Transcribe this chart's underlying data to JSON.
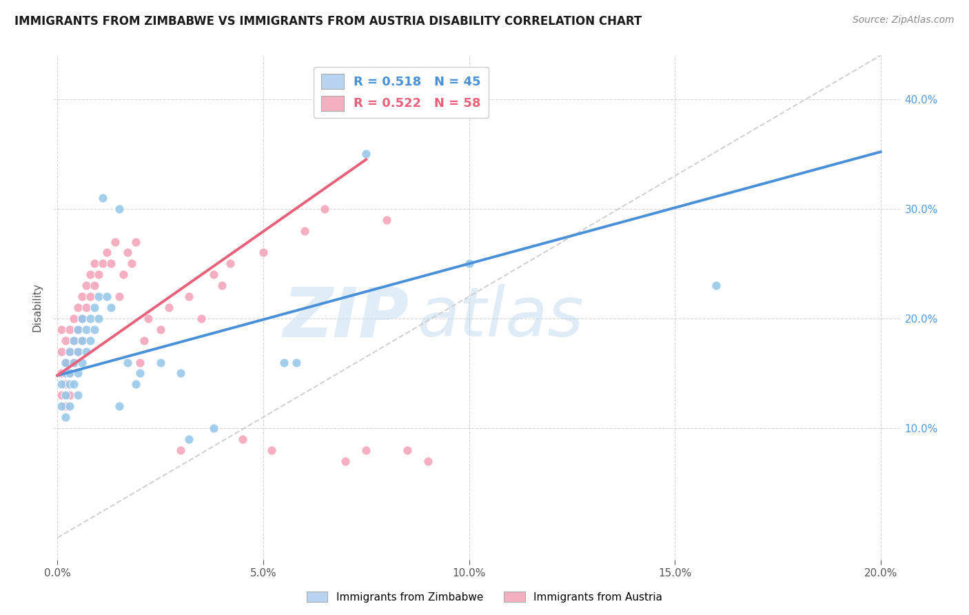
{
  "title": "IMMIGRANTS FROM ZIMBABWE VS IMMIGRANTS FROM AUSTRIA DISABILITY CORRELATION CHART",
  "source": "Source: ZipAtlas.com",
  "ylabel": "Disability",
  "xlabel": "",
  "xlim": [
    -0.001,
    0.205
  ],
  "ylim": [
    -0.02,
    0.44
  ],
  "xticks": [
    0.0,
    0.05,
    0.1,
    0.15,
    0.2
  ],
  "yticks": [
    0.1,
    0.2,
    0.3,
    0.4
  ],
  "ytick_labels": [
    "10.0%",
    "20.0%",
    "30.0%",
    "40.0%"
  ],
  "xtick_labels": [
    "0.0%",
    "5.0%",
    "10.0%",
    "15.0%",
    "20.0%"
  ],
  "blue_scatter_color": "#93c6e8",
  "pink_scatter_color": "#f4a0b8",
  "blue_line_color": "#4a90d9",
  "pink_line_color": "#e8607a",
  "diagonal_color": "#cccccc",
  "watermark_zi": "ZIP",
  "watermark_atlas": "atlas",
  "watermark_color": "#d0e8f8",
  "title_fontsize": 12,
  "source_fontsize": 10,
  "R_zimbabwe": 0.518,
  "N_zimbabwe": 45,
  "R_austria": 0.522,
  "N_austria": 58,
  "blue_line_x0": 0.0,
  "blue_line_y0": 0.148,
  "blue_line_x1": 0.2,
  "blue_line_y1": 0.352,
  "pink_line_x0": 0.0,
  "pink_line_y0": 0.148,
  "pink_line_x1": 0.075,
  "pink_line_y1": 0.345,
  "diag_line_x0": 0.0,
  "diag_line_y0": 0.0,
  "diag_line_x1": 0.2,
  "diag_line_y1": 0.44,
  "zim_points_x": [
    0.001,
    0.001,
    0.002,
    0.002,
    0.002,
    0.002,
    0.003,
    0.003,
    0.003,
    0.003,
    0.004,
    0.004,
    0.004,
    0.005,
    0.005,
    0.005,
    0.005,
    0.006,
    0.006,
    0.006,
    0.007,
    0.007,
    0.008,
    0.008,
    0.009,
    0.009,
    0.01,
    0.01,
    0.011,
    0.012,
    0.013,
    0.015,
    0.015,
    0.017,
    0.019,
    0.02,
    0.025,
    0.03,
    0.032,
    0.038,
    0.055,
    0.058,
    0.075,
    0.16,
    0.1
  ],
  "zim_points_y": [
    0.14,
    0.12,
    0.15,
    0.13,
    0.16,
    0.11,
    0.14,
    0.17,
    0.15,
    0.12,
    0.18,
    0.16,
    0.14,
    0.17,
    0.15,
    0.19,
    0.13,
    0.18,
    0.16,
    0.2,
    0.19,
    0.17,
    0.2,
    0.18,
    0.19,
    0.21,
    0.2,
    0.22,
    0.31,
    0.22,
    0.21,
    0.3,
    0.12,
    0.16,
    0.14,
    0.15,
    0.16,
    0.15,
    0.09,
    0.1,
    0.16,
    0.16,
    0.35,
    0.23,
    0.25
  ],
  "aust_points_x": [
    0.001,
    0.001,
    0.001,
    0.001,
    0.002,
    0.002,
    0.002,
    0.002,
    0.003,
    0.003,
    0.003,
    0.003,
    0.004,
    0.004,
    0.004,
    0.005,
    0.005,
    0.005,
    0.006,
    0.006,
    0.006,
    0.007,
    0.007,
    0.008,
    0.008,
    0.009,
    0.009,
    0.01,
    0.011,
    0.012,
    0.013,
    0.014,
    0.015,
    0.016,
    0.017,
    0.018,
    0.019,
    0.02,
    0.021,
    0.022,
    0.025,
    0.027,
    0.03,
    0.032,
    0.035,
    0.038,
    0.04,
    0.042,
    0.045,
    0.05,
    0.052,
    0.06,
    0.065,
    0.07,
    0.075,
    0.08,
    0.085,
    0.09
  ],
  "aust_points_y": [
    0.15,
    0.17,
    0.13,
    0.19,
    0.16,
    0.14,
    0.18,
    0.12,
    0.17,
    0.15,
    0.19,
    0.13,
    0.2,
    0.18,
    0.16,
    0.19,
    0.21,
    0.17,
    0.22,
    0.2,
    0.18,
    0.21,
    0.23,
    0.22,
    0.24,
    0.23,
    0.25,
    0.24,
    0.25,
    0.26,
    0.25,
    0.27,
    0.22,
    0.24,
    0.26,
    0.25,
    0.27,
    0.16,
    0.18,
    0.2,
    0.19,
    0.21,
    0.08,
    0.22,
    0.2,
    0.24,
    0.23,
    0.25,
    0.09,
    0.26,
    0.08,
    0.28,
    0.3,
    0.07,
    0.08,
    0.29,
    0.08,
    0.07
  ]
}
